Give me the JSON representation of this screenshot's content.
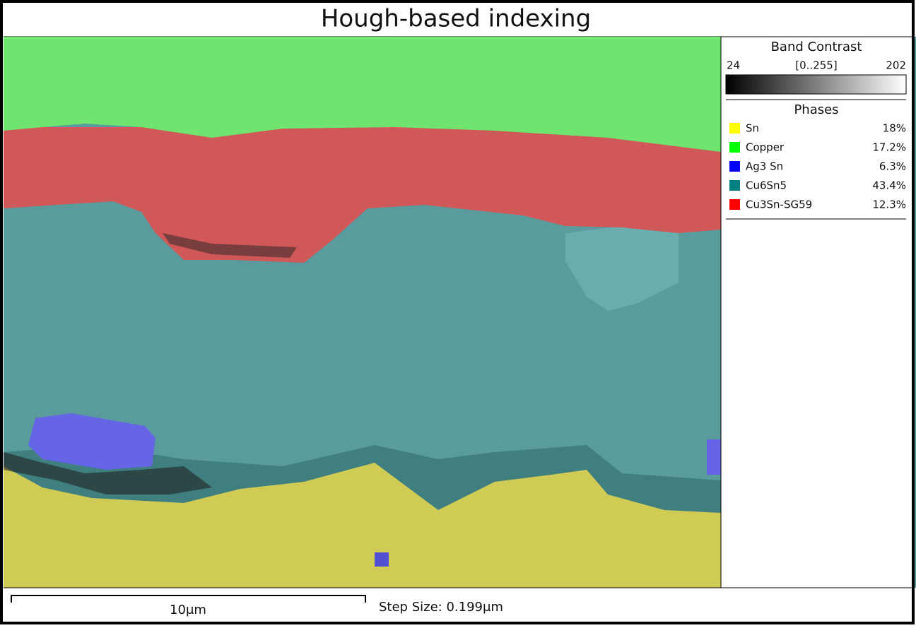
{
  "title": "Hough-based indexing",
  "band_contrast": {
    "label": "Band Contrast",
    "min": "24",
    "range": "[0..255]",
    "max": "202"
  },
  "phases": {
    "label": "Phases",
    "items": [
      {
        "name": "Sn",
        "color": "#ffff00",
        "percent": "18%"
      },
      {
        "name": "Copper",
        "color": "#00ff00",
        "percent": "17.2%"
      },
      {
        "name": "Ag3 Sn",
        "color": "#0000ff",
        "percent": "6.3%"
      },
      {
        "name": "Cu6Sn5",
        "color": "#008080",
        "percent": "43.4%"
      },
      {
        "name": "Cu3Sn-SG59",
        "color": "#ff0000",
        "percent": "12.3%"
      }
    ]
  },
  "scale_bar": "10μm",
  "step_size": "Step Size: 0.199μm"
}
